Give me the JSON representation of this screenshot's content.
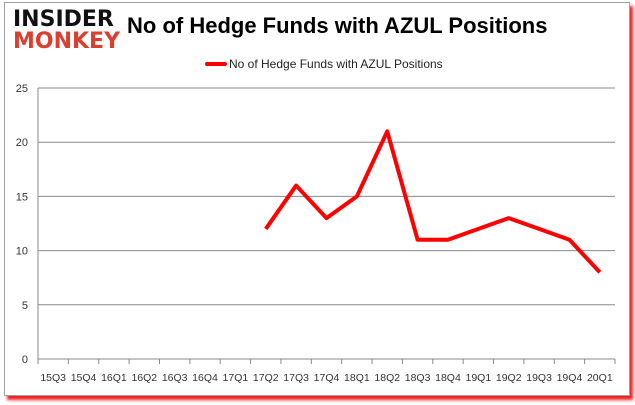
{
  "logo": {
    "line1": "INSIDER",
    "line2": "MONKEY"
  },
  "chart_data": {
    "type": "line",
    "title": "No of Hedge Funds with AZUL Positions",
    "categories": [
      "15Q3",
      "15Q4",
      "16Q1",
      "16Q2",
      "16Q3",
      "16Q4",
      "17Q1",
      "17Q2",
      "17Q3",
      "17Q4",
      "18Q1",
      "18Q2",
      "18Q3",
      "18Q4",
      "19Q1",
      "19Q2",
      "19Q3",
      "19Q4",
      "20Q1"
    ],
    "series": [
      {
        "name": "No of Hedge Funds with AZUL Positions",
        "color": "#ff0000",
        "values": [
          null,
          null,
          null,
          null,
          null,
          null,
          null,
          12,
          16,
          13,
          15,
          21,
          11,
          11,
          12,
          13,
          12,
          11,
          8
        ]
      }
    ],
    "ylim": [
      0,
      25
    ],
    "yticks": [
      0,
      5,
      10,
      15,
      20,
      25
    ],
    "grid": true,
    "legend": "top"
  }
}
